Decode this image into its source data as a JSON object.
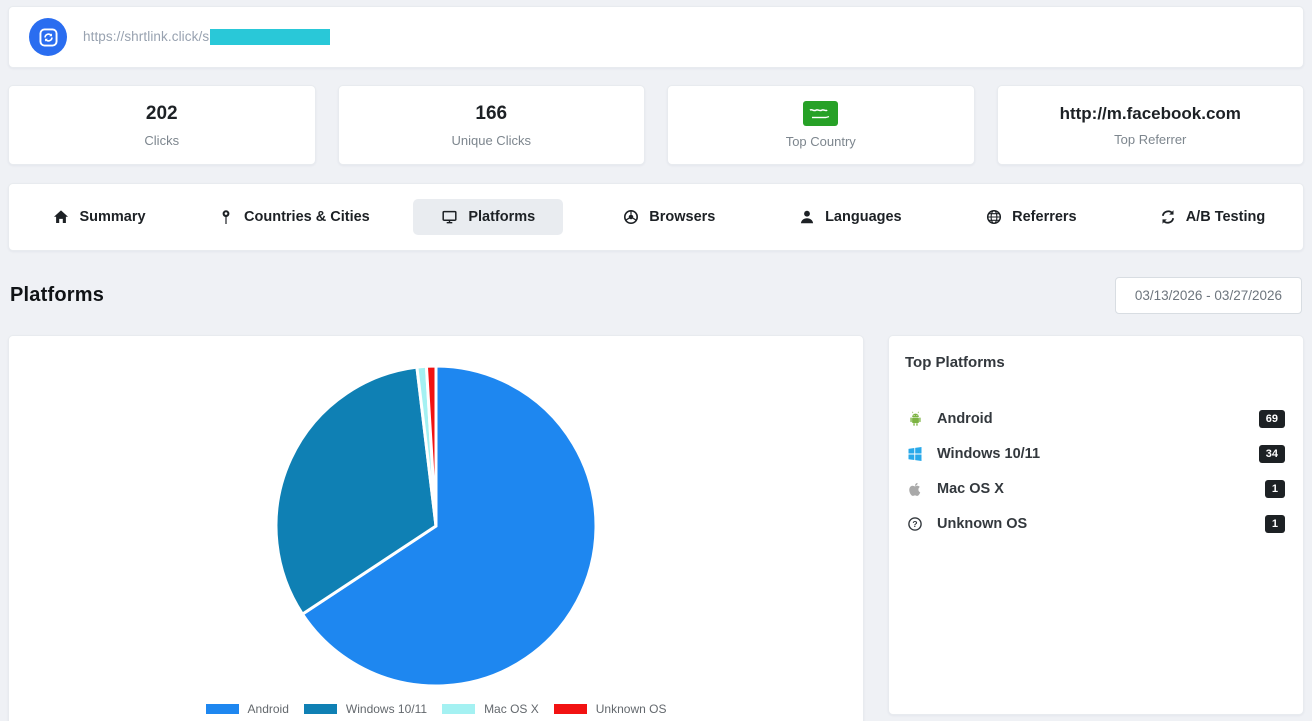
{
  "header": {
    "url_visible": "https://shrtlink.click/s",
    "url_redacted": true,
    "redaction_color": "#29c8d8",
    "logo_color": "#2a6df0",
    "logo_icon": "sync-square-icon"
  },
  "stats": [
    {
      "value": "202",
      "label": "Clicks"
    },
    {
      "value": "166",
      "label": "Unique Clicks"
    },
    {
      "value": "",
      "label": "Top Country",
      "icon": "saudi-arabia-flag-icon",
      "flag_color": "#27a127"
    },
    {
      "value": "http://m.facebook.com",
      "label": "Top Referrer"
    }
  ],
  "tabs": [
    {
      "label": "Summary",
      "icon": "home-icon",
      "active": false
    },
    {
      "label": "Countries & Cities",
      "icon": "map-pin-icon",
      "active": false
    },
    {
      "label": "Platforms",
      "icon": "monitor-icon",
      "active": true
    },
    {
      "label": "Browsers",
      "icon": "browser-circle-icon",
      "active": false
    },
    {
      "label": "Languages",
      "icon": "person-icon",
      "active": false
    },
    {
      "label": "Referrers",
      "icon": "globe-icon",
      "active": false
    },
    {
      "label": "A/B Testing",
      "icon": "sync-arrows-icon",
      "active": false
    }
  ],
  "section": {
    "title": "Platforms",
    "date_range": "03/13/2026 - 03/27/2026"
  },
  "chart_data": {
    "type": "pie",
    "categories": [
      "Android",
      "Windows 10/11",
      "Mac OS X",
      "Unknown OS"
    ],
    "values": [
      69,
      34,
      1,
      1
    ],
    "percentages": [
      65.7,
      32.4,
      0.95,
      0.95
    ],
    "colors": [
      "#1e87f0",
      "#0f80b4",
      "#a4f1f2",
      "#f21212"
    ],
    "slice_border_color": "#ffffff",
    "start_angle_deg": 0,
    "direction": "clockwise",
    "legend_position": "bottom",
    "title": ""
  },
  "top_platforms": {
    "title": "Top Platforms",
    "items": [
      {
        "name": "Android",
        "count": "69",
        "icon": "android-icon",
        "icon_color": "#7cb342"
      },
      {
        "name": "Windows 10/11",
        "count": "34",
        "icon": "windows-icon",
        "icon_color": "#29a9ea"
      },
      {
        "name": "Mac OS X",
        "count": "1",
        "icon": "apple-icon",
        "icon_color": "#a9a9a9"
      },
      {
        "name": "Unknown OS",
        "count": "1",
        "icon": "question-circle-icon",
        "icon_color": "#33383d"
      }
    ],
    "badge_color": "#1d2124"
  }
}
